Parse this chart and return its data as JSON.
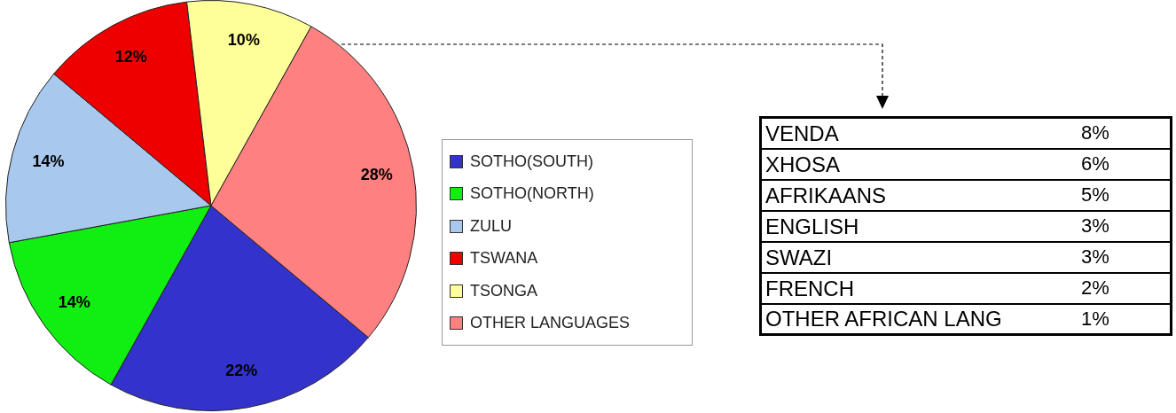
{
  "chart_data": [
    {
      "type": "pie",
      "categories": [
        "SOTHO(SOUTH)",
        "SOTHO(NORTH)",
        "ZULU",
        "TSWANA",
        "TSONGA",
        "OTHER LANGUAGES"
      ],
      "values": [
        22,
        14,
        14,
        12,
        10,
        28
      ],
      "value_labels": [
        "22%",
        "14%",
        "14%",
        "12%",
        "10%",
        "28%"
      ],
      "colors": [
        "#3333cc",
        "#11ee11",
        "#a8c8ee",
        "#ee0000",
        "#ffff99",
        "#ff8080"
      ],
      "legend": "right"
    },
    {
      "type": "other",
      "categories": [
        "VENDA",
        "XHOSA",
        "AFRIKAANS",
        "ENGLISH",
        "SWAZI",
        "FRENCH",
        "OTHER AFRICAN LANG"
      ],
      "value_labels": [
        "8%",
        "6%",
        "5%",
        "3%",
        "3%",
        "2%",
        "1%"
      ]
    }
  ]
}
